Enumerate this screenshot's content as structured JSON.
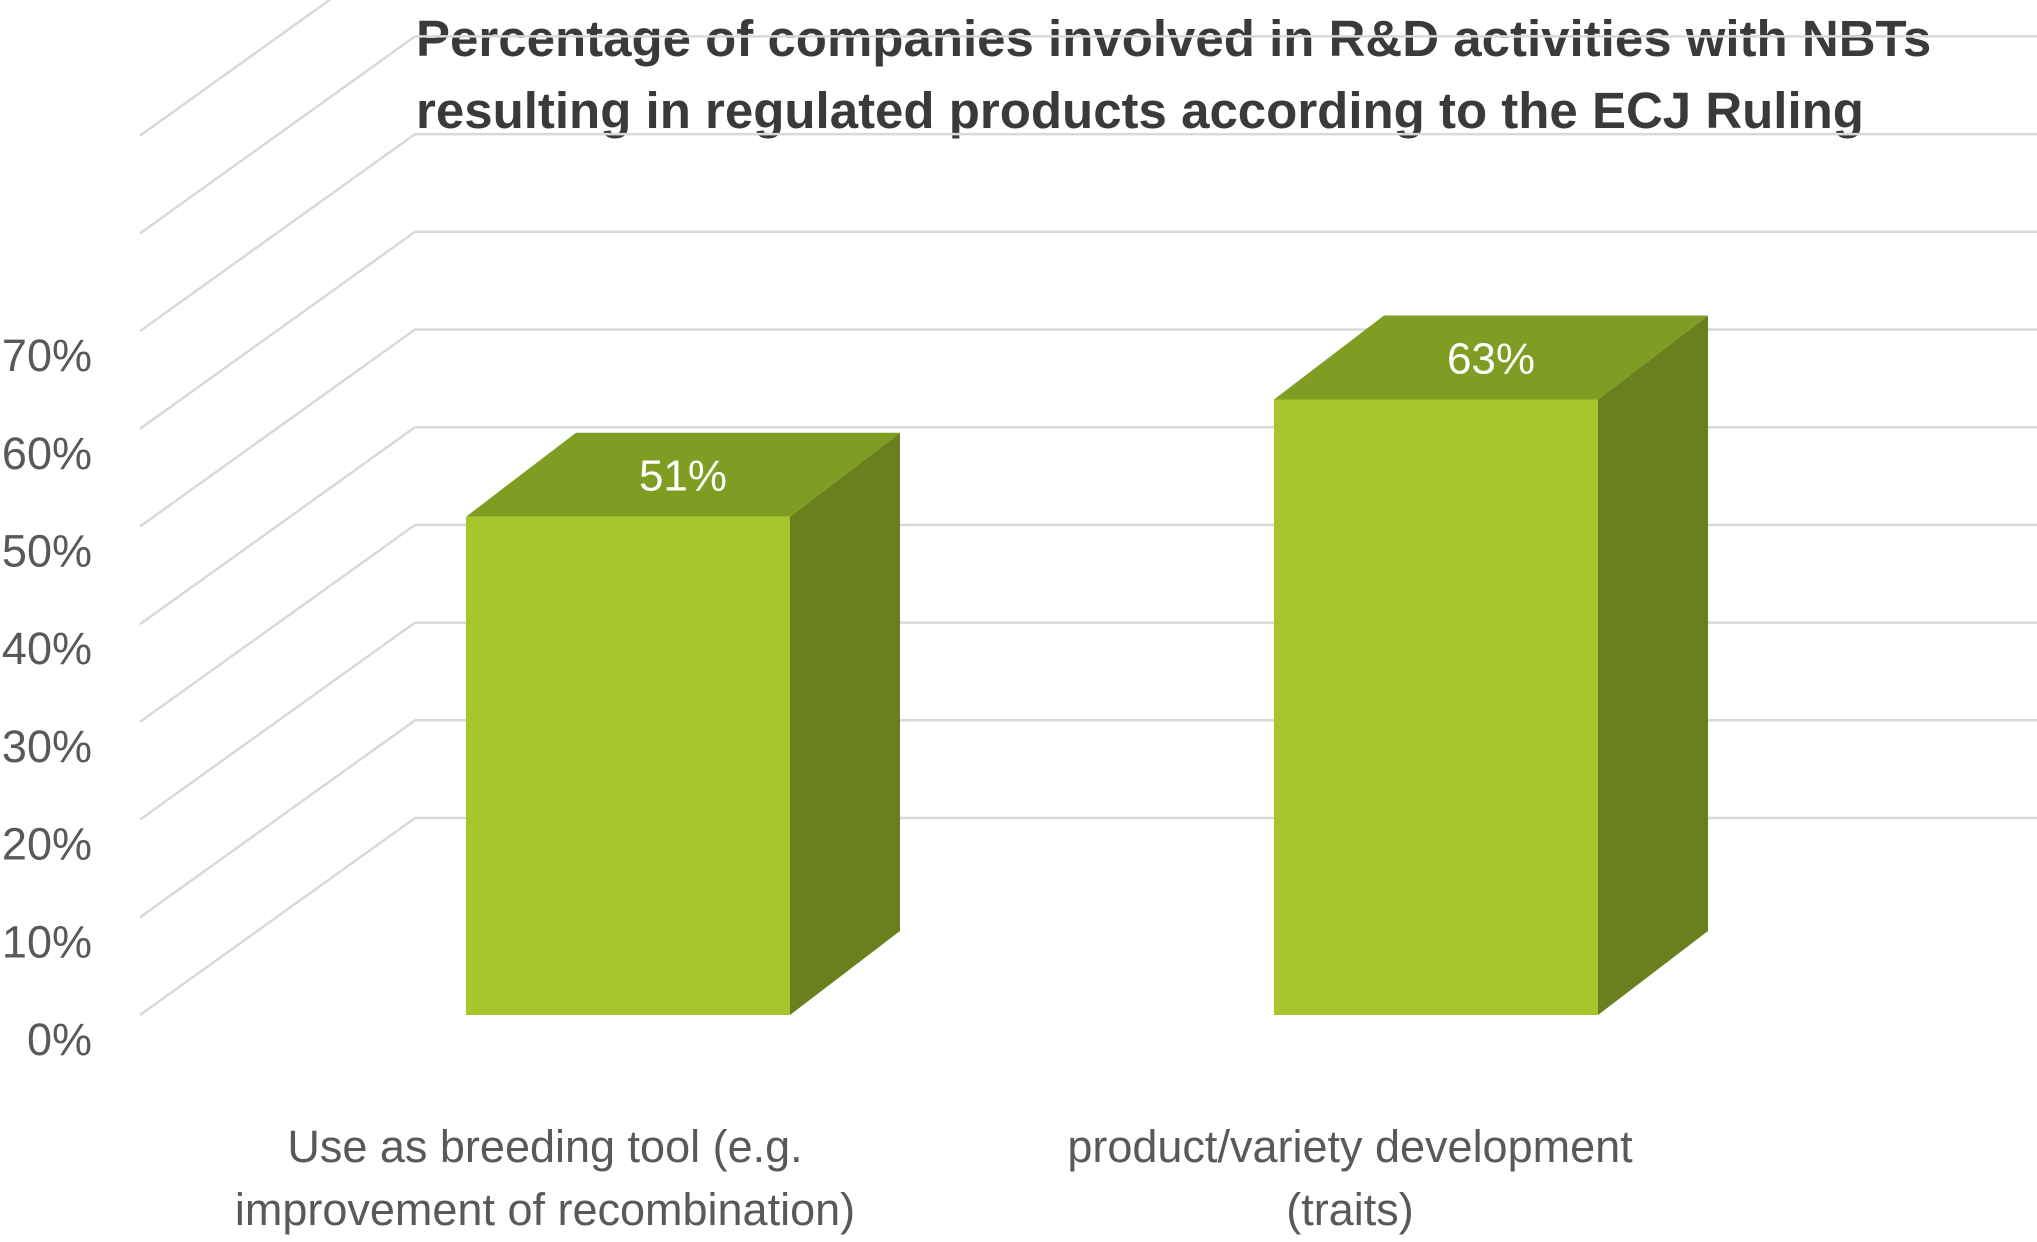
{
  "chart_data": {
    "type": "bar",
    "style": "3d",
    "title_lines": [
      "Percentage of companies involved in R&D activities with NBTs",
      "resulting in regulated products according to the ECJ Ruling"
    ],
    "categories": [
      [
        "Use as breeding tool (e.g.",
        "improvement of recombination)"
      ],
      [
        "product/variety development",
        "(traits)"
      ]
    ],
    "values": [
      51,
      63
    ],
    "data_labels": [
      "51%",
      "63%"
    ],
    "yticks": [
      0,
      10,
      20,
      30,
      40,
      50,
      60,
      70
    ],
    "ytick_labels": [
      "0%",
      "10%",
      "20%",
      "30%",
      "40%",
      "50%",
      "60%",
      "70%"
    ],
    "ylim": [
      0,
      90
    ],
    "grid": true,
    "xlabel": "",
    "ylabel": ""
  },
  "colors": {
    "bar_front": "#a7c62b",
    "bar_top": "#7f9d22",
    "bar_side": "#6a801f",
    "grid": "#d9d9d9",
    "text": "#595959",
    "title": "#3a3a3a"
  }
}
